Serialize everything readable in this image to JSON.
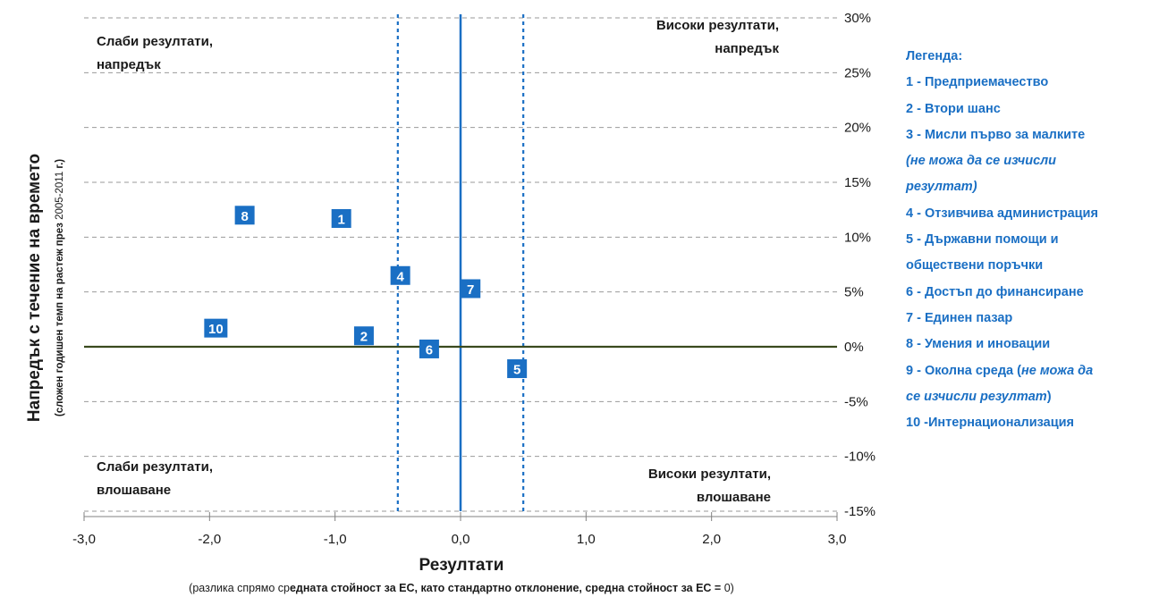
{
  "chart_data": {
    "type": "scatter",
    "x_axis": {
      "title": "Резултати",
      "subtitle_parts": [
        "(разлика спрямо ср",
        "едната стойност за ЕС,  като стандартно отклонение, средна стойност за ЕС = ",
        "0)"
      ],
      "min": -3.0,
      "max": 3.0,
      "ticks": [
        -3.0,
        -2.0,
        -1.0,
        0.0,
        1.0,
        2.0,
        3.0
      ],
      "tick_labels": [
        "-3,0",
        "-2,0",
        "-1,0",
        "0,0",
        "1,0",
        "2,0",
        "3,0"
      ]
    },
    "y_axis": {
      "title": "Напредък с течение на времето",
      "subtitle_parts": [
        "(сложен годишен темп на растеж през ",
        "2005-2011",
        " г.)"
      ],
      "min": -0.15,
      "max": 0.3,
      "ticks": [
        -0.15,
        -0.1,
        -0.05,
        0.0,
        0.05,
        0.1,
        0.15,
        0.2,
        0.25,
        0.3
      ],
      "tick_labels": [
        "-15%",
        "-10%",
        "-5%",
        "0%",
        "5%",
        "10%",
        "15%",
        "20%",
        "25%",
        "30%"
      ],
      "side": "right"
    },
    "grid": "horizontal dashed",
    "reference_lines": {
      "x_solid": 0.0,
      "x_dotted": [
        -0.5,
        0.5
      ],
      "y_solid": 0.0
    },
    "points": [
      {
        "label": "1",
        "x": -0.95,
        "y": 0.117
      },
      {
        "label": "2",
        "x": -0.77,
        "y": 0.01
      },
      {
        "label": "4",
        "x": -0.48,
        "y": 0.065
      },
      {
        "label": "5",
        "x": 0.45,
        "y": -0.02
      },
      {
        "label": "6",
        "x": -0.25,
        "y": -0.002
      },
      {
        "label": "7",
        "x": 0.08,
        "y": 0.053
      },
      {
        "label": "8",
        "x": -1.72,
        "y": 0.12
      },
      {
        "label": "10",
        "x": -1.95,
        "y": 0.017
      }
    ],
    "quadrant_labels": {
      "top_left": [
        "Слаби резултати,",
        "напредък"
      ],
      "top_right": [
        "Високи резултати,",
        "напредък"
      ],
      "bottom_left": [
        "Слаби резултати,",
        "влошаване"
      ],
      "bottom_right": [
        "Високи резултати,",
        "влошаване"
      ]
    },
    "colors": {
      "marker": "#1a6fc4",
      "marker_text": "#ffffff",
      "vertical_lines": "#1a6fc4",
      "horizontal_zero_line": "#3a4a1e",
      "grid": "#9a9a9a",
      "legend_text": "#1a6fc4"
    }
  },
  "legend": {
    "title": "Легенда:",
    "rows": [
      [
        {
          "t": "1 - Предприемачество"
        }
      ],
      [
        {
          "t": "2 - Втори шанс"
        }
      ],
      [
        {
          "t": "3 - Мисли първо за малките"
        }
      ],
      [
        {
          "t": "(не можа да се изчисли",
          "italic": true
        }
      ],
      [
        {
          "t": "резултат)",
          "italic": true
        }
      ],
      [
        {
          "t": "4 - Отзивчива администрация"
        }
      ],
      [
        {
          "t": "5 - Държавни помощи и"
        }
      ],
      [
        {
          "t": "обществени поръчки"
        }
      ],
      [
        {
          "t": "6 -  Достъп до финансиране"
        }
      ],
      [
        {
          "t": "7 - Единен пазар"
        }
      ],
      [
        {
          "t": "8 - Умения и иновации"
        }
      ],
      [
        {
          "t": "9 - Околна среда ("
        },
        {
          "t": "не можа да",
          "italic": true
        }
      ],
      [
        {
          "t": "се изчисли резултат",
          "italic": true
        },
        {
          "t": ")"
        }
      ],
      [
        {
          "t": "10 -Интернационализация"
        }
      ]
    ]
  }
}
